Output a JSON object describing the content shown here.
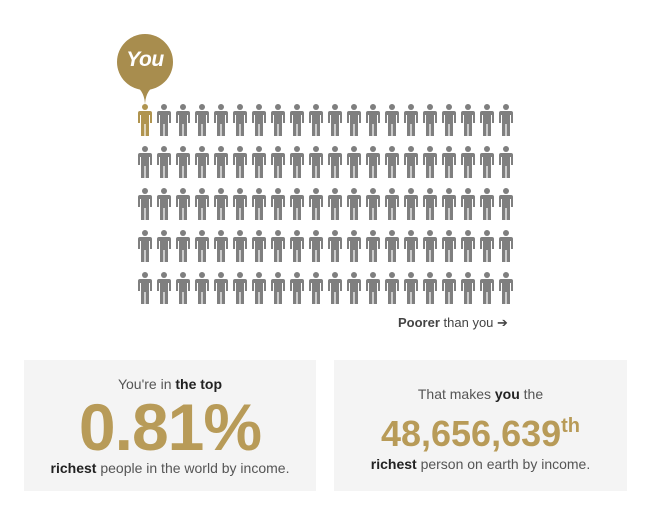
{
  "bubble": {
    "label": "You"
  },
  "people": {
    "total": 100,
    "columns": 20,
    "highlight_index": 0,
    "highlight_color": "#b0944f",
    "default_color": "#7f7f7f"
  },
  "poorer": {
    "bold": "Poorer",
    "rest": "than you",
    "arrow": "➔"
  },
  "box1": {
    "intro_plain": "You're in ",
    "intro_bold": "the top",
    "value": "0.81%",
    "outro_bold": "richest",
    "outro_plain": " people in the world by income."
  },
  "box2": {
    "intro_plain": "That makes ",
    "intro_bold": "you",
    "intro_end": " the",
    "value": "48,656,639",
    "suffix": "th",
    "outro_bold": "richest",
    "outro_plain": " person on earth by income."
  },
  "colors": {
    "accent": "#b89b58",
    "panel": "#f4f4f4"
  }
}
